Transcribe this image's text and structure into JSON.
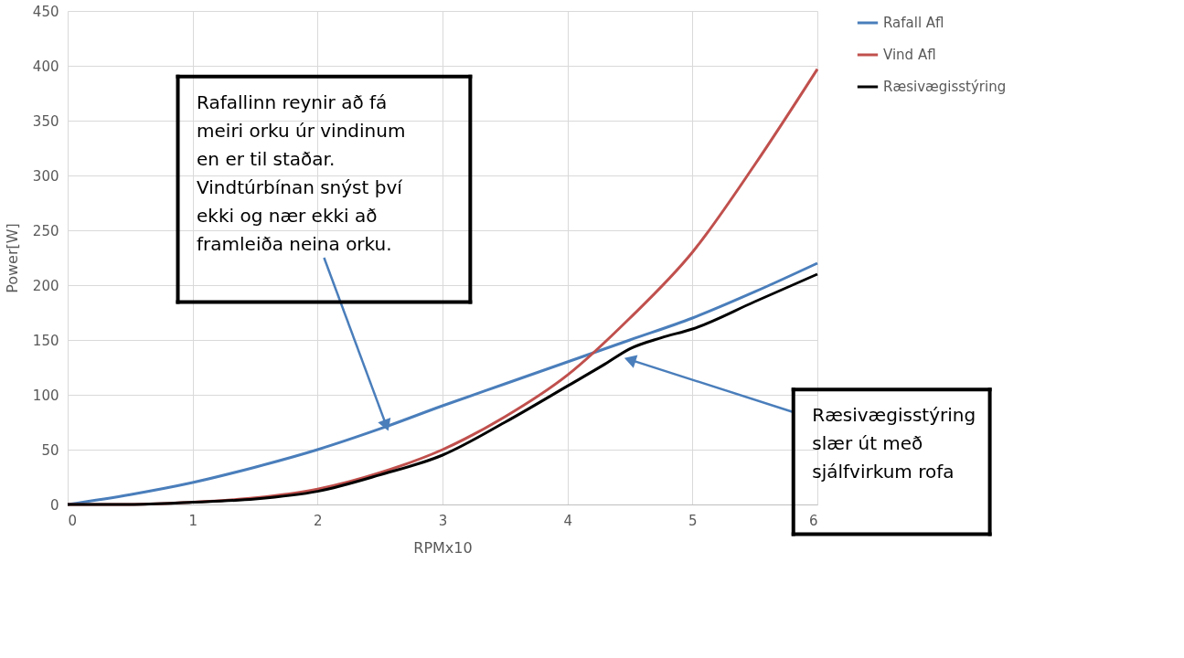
{
  "chart_data": {
    "type": "line",
    "xlabel": "RPMx10",
    "ylabel": "Power[W]",
    "xlim": [
      0,
      6
    ],
    "xticks": [
      0,
      1,
      2,
      3,
      4,
      5,
      6
    ],
    "ylim": [
      0,
      450
    ],
    "yticks": [
      0,
      50,
      100,
      150,
      200,
      250,
      300,
      350,
      400,
      450
    ],
    "grid": true,
    "legend": "right",
    "line_style": "solid",
    "marker": "none",
    "series": [
      {
        "name": "Rafall Afl",
        "color": "#4a7ebb",
        "x": [
          0,
          0.5,
          1,
          1.5,
          2,
          2.5,
          3,
          3.5,
          4,
          4.5,
          5,
          5.5,
          6
        ],
        "values": [
          0,
          9,
          20,
          34,
          50,
          69,
          90,
          110,
          130,
          150,
          170,
          194,
          220
        ]
      },
      {
        "name": "Vind Afl",
        "color": "#c0504d",
        "x": [
          0,
          0.5,
          1,
          1.5,
          2,
          2.5,
          3,
          3.5,
          4,
          4.5,
          5,
          5.5,
          6
        ],
        "values": [
          0,
          0,
          2,
          6,
          14,
          29,
          50,
          80,
          118,
          170,
          230,
          310,
          397
        ]
      },
      {
        "name": "Ræsivægisstýring",
        "color": "#000000",
        "x": [
          0,
          0.5,
          1,
          1.5,
          2,
          2.5,
          3,
          3.5,
          4,
          4.3,
          4.5,
          4.75,
          5,
          5.5,
          6
        ],
        "values": [
          0,
          0,
          2,
          5,
          12,
          27,
          45,
          75,
          108,
          128,
          142,
          152,
          160,
          185,
          210
        ]
      }
    ],
    "annotations": [
      {
        "text": "Rafallinn reynir að fá\nmeiri orku úr vindinum\nen er til staðar.\nVindtúrbínan snýst því\nekki og nær ekki að\nframleiða neina orku.",
        "x": 2.55,
        "y": 72
      },
      {
        "text": "Ræsivægisstýring\nslær út með\nsjálfvirkum rofa",
        "x": 4.5,
        "y": 132
      }
    ]
  }
}
